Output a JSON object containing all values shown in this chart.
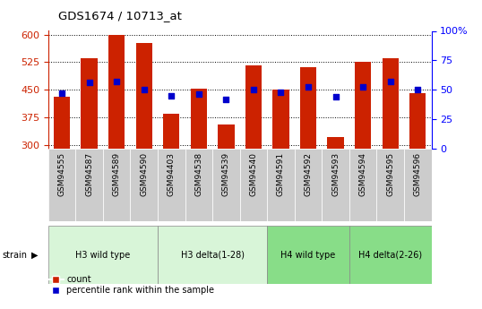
{
  "title": "GDS1674 / 10713_at",
  "samples": [
    "GSM94555",
    "GSM94587",
    "GSM94589",
    "GSM94590",
    "GSM94403",
    "GSM94538",
    "GSM94539",
    "GSM94540",
    "GSM94591",
    "GSM94592",
    "GSM94593",
    "GSM94594",
    "GSM94595",
    "GSM94596"
  ],
  "counts": [
    430,
    535,
    600,
    578,
    385,
    452,
    355,
    515,
    450,
    510,
    320,
    525,
    535,
    440
  ],
  "percentiles": [
    47,
    56,
    57,
    50,
    45,
    46,
    42,
    50,
    48,
    52,
    44,
    52,
    57,
    50
  ],
  "groups": [
    {
      "label": "H3 wild type",
      "start": 0,
      "end": 3,
      "color": "#d8f5d8"
    },
    {
      "label": "H3 delta(1-28)",
      "start": 4,
      "end": 7,
      "color": "#d8f5d8"
    },
    {
      "label": "H4 wild type",
      "start": 8,
      "end": 10,
      "color": "#88dd88"
    },
    {
      "label": "H4 delta(2-26)",
      "start": 11,
      "end": 13,
      "color": "#88dd88"
    }
  ],
  "ylim_left": [
    290,
    610
  ],
  "ylim_right": [
    0,
    100
  ],
  "yticks_left": [
    300,
    375,
    450,
    525,
    600
  ],
  "yticks_right": [
    0,
    25,
    50,
    75,
    100
  ],
  "ytick_right_labels": [
    "0",
    "25",
    "50",
    "75",
    "100%"
  ],
  "bar_color": "#cc2200",
  "dot_color": "#0000cc",
  "tick_bg_color": "#cccccc",
  "legend_bar_label": "count",
  "legend_dot_label": "percentile rank within the sample"
}
